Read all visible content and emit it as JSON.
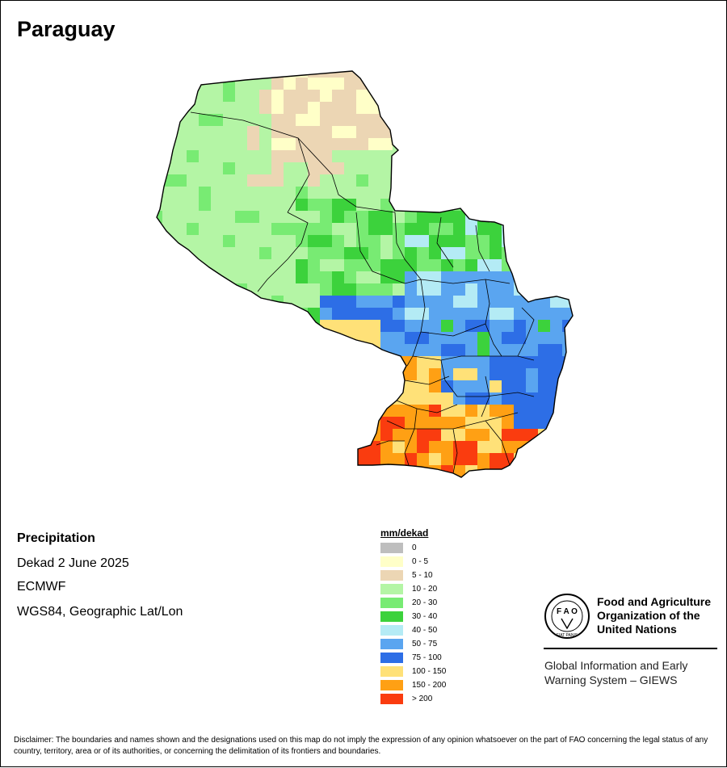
{
  "title": "Paraguay",
  "info": {
    "variable": "Precipitation",
    "period": "Dekad 2 June 2025",
    "model": "ECMWF",
    "projection": "WGS84, Geographic Lat/Lon"
  },
  "legend": {
    "title": "mm/dekad",
    "items": [
      {
        "label": "0",
        "color": "#bebebe"
      },
      {
        "label": "0 - 5",
        "color": "#ffffc8"
      },
      {
        "label": "5 - 10",
        "color": "#ecd6b4"
      },
      {
        "label": "10 - 20",
        "color": "#b4f5a5"
      },
      {
        "label": "20 - 30",
        "color": "#78eb73"
      },
      {
        "label": "30 - 40",
        "color": "#3cd23c"
      },
      {
        "label": "40 - 50",
        "color": "#b4ebf5"
      },
      {
        "label": "50 - 75",
        "color": "#5aa5f0"
      },
      {
        "label": "75 - 100",
        "color": "#2d6ee6"
      },
      {
        "label": "100 - 150",
        "color": "#ffe178"
      },
      {
        "label": "150 - 200",
        "color": "#ffa014"
      },
      {
        "label": "> 200",
        "color": "#fa3c0f"
      }
    ]
  },
  "organization": {
    "logo_letters": "F A O",
    "logo_motto": "FIAT PANIS",
    "name": "Food and Agriculture Organization of the United Nations",
    "system": "Global Information and Early Warning System – GIEWS"
  },
  "disclaimer": "Disclaimer: The boundaries and names shown and the designations used on this map do not imply the expression of any opinion whatsoever on the part of FAO concerning the legal status of any country, territory, area or of its authorities, or concerning the delimitation of its frontiers and boundaries."
}
